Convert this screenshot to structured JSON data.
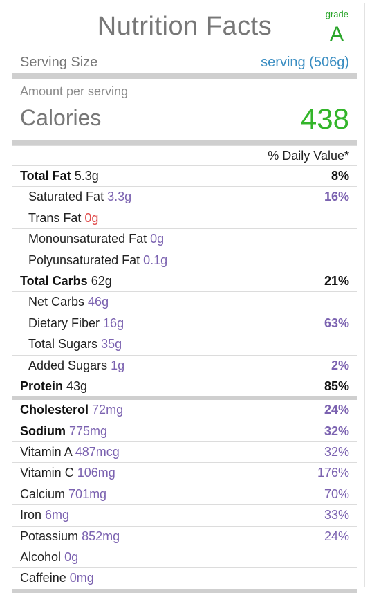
{
  "header": {
    "title": "Nutrition Facts",
    "grade_label": "grade",
    "grade_value": "A"
  },
  "serving": {
    "label": "Serving Size",
    "value": "serving (506g)"
  },
  "amount_per_serving": "Amount per serving",
  "calories": {
    "label": "Calories",
    "value": "438"
  },
  "daily_value_header": "% Daily Value*",
  "nutrients": [
    {
      "name": "Total Fat",
      "amount": "5.3g",
      "pct": "8%"
    },
    {
      "name": "Saturated Fat",
      "amount": "3.3g",
      "pct": "16%"
    },
    {
      "name": "Trans Fat",
      "amount": "0g",
      "pct": ""
    },
    {
      "name": "Monounsaturated Fat",
      "amount": "0g",
      "pct": ""
    },
    {
      "name": "Polyunsaturated Fat",
      "amount": "0.1g",
      "pct": ""
    },
    {
      "name": "Total Carbs",
      "amount": "62g",
      "pct": "21%"
    },
    {
      "name": "Net Carbs",
      "amount": "46g",
      "pct": ""
    },
    {
      "name": "Dietary Fiber",
      "amount": "16g",
      "pct": "63%"
    },
    {
      "name": "Total Sugars",
      "amount": "35g",
      "pct": ""
    },
    {
      "name": "Added Sugars",
      "amount": "1g",
      "pct": "2%"
    },
    {
      "name": "Protein",
      "amount": "43g",
      "pct": "85%"
    }
  ],
  "minerals": [
    {
      "name": "Cholesterol",
      "amount": "72mg",
      "pct": "24%"
    },
    {
      "name": "Sodium",
      "amount": "775mg",
      "pct": "32%"
    },
    {
      "name": "Vitamin A",
      "amount": "487mcg",
      "pct": "32%"
    },
    {
      "name": "Vitamin C",
      "amount": "106mg",
      "pct": "176%"
    },
    {
      "name": "Calcium",
      "amount": "701mg",
      "pct": "70%"
    },
    {
      "name": "Iron",
      "amount": "6mg",
      "pct": "33%"
    },
    {
      "name": "Potassium",
      "amount": "852mg",
      "pct": "24%"
    },
    {
      "name": "Alcohol",
      "amount": "0g",
      "pct": ""
    },
    {
      "name": "Caffeine",
      "amount": "0mg",
      "pct": ""
    }
  ],
  "colors": {
    "grade_green": "#2aa52a",
    "calories_green": "#33b52a",
    "serving_blue": "#3b8ec2",
    "amount_purple": "#7b62b0",
    "trans_fat_red": "#e04b4b"
  }
}
